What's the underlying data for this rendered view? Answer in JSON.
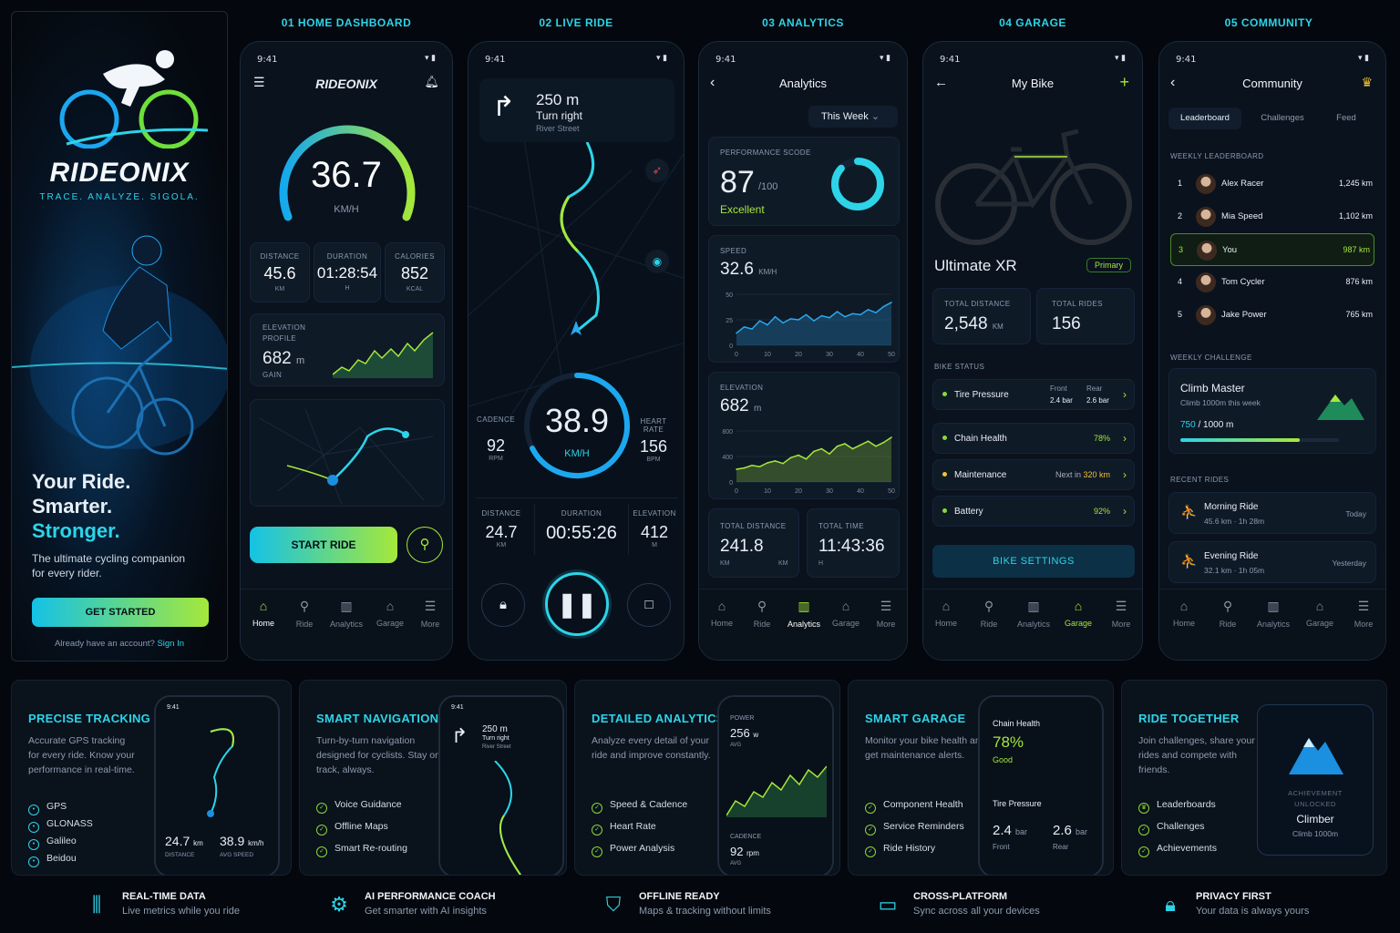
{
  "section_labels": [
    "01 HOME DASHBOARD",
    "02 LIVE RIDE",
    "03 ANALYTICS",
    "04 GARAGE",
    "05 COMMUNITY"
  ],
  "colors": {
    "accent_cyan": "#2dd4e8",
    "accent_green": "#a5e83a",
    "bg": "#04080e"
  },
  "splash": {
    "brand": "RIDEONIX",
    "tagline": "TRACE. ANALYZE. SIGOLA.",
    "headline1": "Your Ride.",
    "headline2": "Smarter.",
    "headline3": "Stronger.",
    "sub": "The ultimate cycling companion for every rider.",
    "cta": "GET STARTED",
    "signin_prefix": "Already have an account?",
    "signin_link": "Sign In"
  },
  "status_time": "9:41",
  "home": {
    "brand": "RIDEONIX",
    "speed": "36.7",
    "speed_unit": "KM/H",
    "stats": [
      {
        "label": "DISTANCE",
        "value": "45.6",
        "unit": "KM"
      },
      {
        "label": "DURATION",
        "value": "01:28:54",
        "unit": "H"
      },
      {
        "label": "CALORIES",
        "value": "852",
        "unit": "KCAL"
      }
    ],
    "elev_label1": "ELEVATION",
    "elev_label2": "PROFILE",
    "elev_value": "682",
    "elev_unit": "m",
    "elev_sub": "GAIN",
    "start": "START RIDE"
  },
  "nav": {
    "home": "Home",
    "ride": "Ride",
    "analytics": "Analytics",
    "garage": "Garage",
    "more": "More"
  },
  "live": {
    "dist": "250 m",
    "instr": "Turn right",
    "street": "River Street",
    "cad_label": "CADENCE",
    "cad_val": "92",
    "cad_unit": "RPM",
    "speed": "38.9",
    "speed_unit": "KM/H",
    "hr_label1": "HEART",
    "hr_label2": "RATE",
    "hr_val": "156",
    "hr_unit": "BPM",
    "stats": [
      {
        "label": "DISTANCE",
        "value": "24.7",
        "unit": "KM"
      },
      {
        "label": "DURATION",
        "value": "00:55:26",
        "unit": ""
      },
      {
        "label": "ELEVATION",
        "value": "412",
        "unit": "M"
      }
    ]
  },
  "analytics": {
    "title": "Analytics",
    "period": "This Week",
    "perf_label": "PERFORMANCE SCODE",
    "perf_val": "87",
    "perf_max": "/100",
    "perf_grade": "Excellent",
    "perf_fraction": 0.87,
    "speed_label": "SPEED",
    "speed_val": "32.6",
    "speed_unit": "KM/H",
    "elev_label": "ELEVATION",
    "elev_val": "682",
    "elev_unit": "m",
    "tot_dist_label": "TOTAL DISTANCE",
    "tot_dist": "241.8",
    "tot_dist_unit": "KM",
    "tot_dist_unit2": "KM",
    "tot_time_label": "TOTAL TIME",
    "tot_time": "11:43:36",
    "tot_time_unit": "H"
  },
  "chart_data": [
    {
      "type": "area",
      "title": "SPEED",
      "x": [
        0,
        2.5,
        5,
        7.5,
        10,
        12.5,
        15,
        17.5,
        20,
        22.5,
        25,
        27.5,
        30,
        32.5,
        35,
        37.5,
        40,
        42.5,
        45,
        47.5,
        50
      ],
      "y": [
        12,
        18,
        16,
        24,
        20,
        28,
        22,
        26,
        25,
        30,
        24,
        29,
        27,
        33,
        28,
        31,
        30,
        35,
        32,
        38,
        42
      ],
      "xlim": [
        0,
        50
      ],
      "ylim": [
        0,
        50
      ],
      "yticks": [
        0,
        25,
        50
      ],
      "xticks": [
        "0",
        "10",
        "20",
        "30",
        "40",
        "50"
      ]
    },
    {
      "type": "area",
      "title": "ELEVATION",
      "x": [
        0,
        2.5,
        5,
        7.5,
        10,
        12.5,
        15,
        17.5,
        20,
        22.5,
        25,
        27.5,
        30,
        32.5,
        35,
        37.5,
        40,
        42.5,
        45,
        47.5,
        50
      ],
      "y": [
        200,
        220,
        260,
        240,
        300,
        330,
        290,
        380,
        420,
        360,
        480,
        520,
        440,
        560,
        600,
        520,
        580,
        640,
        560,
        620,
        700
      ],
      "xlim": [
        0,
        50
      ],
      "ylim": [
        0,
        800
      ],
      "yticks": [
        0,
        400,
        800
      ],
      "xticks": [
        "0",
        "10",
        "20",
        "30",
        "40",
        "50"
      ]
    }
  ],
  "garage": {
    "title": "My Bike",
    "bike": "Ultimate XR",
    "badge": "Primary",
    "tot_dist_label": "TOTAL DISTANCE",
    "tot_dist": "2,548",
    "tot_dist_unit": "KM",
    "tot_rides_label": "TOTAL RIDES",
    "tot_rides": "156",
    "status_label": "BIKE STATUS",
    "items": [
      {
        "name": "Tire Pressure",
        "front_label": "Front",
        "front": "2.4 bar",
        "rear_label": "Rear",
        "rear": "2.6 bar"
      },
      {
        "name": "Chain Health",
        "value": "78%"
      },
      {
        "name": "Maintenance",
        "prefix": "Next in",
        "value": "320 km"
      },
      {
        "name": "Battery",
        "value": "92%"
      }
    ],
    "settings": "BIKE SETTINGS"
  },
  "community": {
    "title": "Community",
    "tabs": [
      "Leaderboard",
      "Challenges",
      "Feed"
    ],
    "lb_label": "WEEKLY LEADERBOARD",
    "leaders": [
      {
        "rank": "1",
        "name": "Alex Racer",
        "km": "1,245 km"
      },
      {
        "rank": "2",
        "name": "Mia Speed",
        "km": "1,102 km"
      },
      {
        "rank": "3",
        "name": "You",
        "km": "987 km"
      },
      {
        "rank": "4",
        "name": "Tom Cycler",
        "km": "876 km"
      },
      {
        "rank": "5",
        "name": "Jake Power",
        "km": "765 km"
      }
    ],
    "ch_label": "WEEKLY CHALLENGE",
    "ch_title": "Climb Master",
    "ch_sub": "Climb 1000m this week",
    "ch_prog": "750",
    "ch_total": "/ 1000 m",
    "ch_fraction": 0.75,
    "recent_label": "RECENT RIDES",
    "rides": [
      {
        "name": "Morning Ride",
        "meta": "45.6 km · 1h 28m",
        "when": "Today"
      },
      {
        "name": "Evening Ride",
        "meta": "32.1 km · 1h 05m",
        "when": "Yesterday"
      }
    ]
  },
  "promo": {
    "tracking": {
      "title": "PRECISE TRACKING",
      "desc": "Accurate GPS tracking for every ride. Know your performance in real-time.",
      "items": [
        "GPS",
        "GLONASS",
        "Galileo",
        "Beidou"
      ],
      "time": "9:41",
      "dist": "24.7",
      "dist_unit": "km",
      "dist_label": "DISTANCE",
      "speed": "38.9",
      "speed_unit": "km/h",
      "speed_label": "AVG SPEED"
    },
    "nav": {
      "title": "SMART NAVIGATION",
      "desc": "Turn-by-turn navigation designed for cyclists. Stay on track, always.",
      "items": [
        "Voice Guidance",
        "Offline Maps",
        "Smart Re-routing"
      ],
      "time": "9:41",
      "dist": "250 m",
      "instr": "Turn right",
      "street": "River Street"
    },
    "analytics": {
      "title": "DETAILED ANALYTICS",
      "desc": "Analyze every detail of your ride and improve constantly.",
      "items": [
        "Speed & Cadence",
        "Heart Rate",
        "Power Analysis"
      ],
      "power_label": "POWER",
      "power": "256",
      "power_unit": "w",
      "avg": "AVG",
      "cad_label": "CADENCE",
      "cad": "92",
      "cad_unit": "rpm"
    },
    "garage": {
      "title": "SMART GARAGE",
      "desc": "Monitor your bike health and get maintenance alerts.",
      "items": [
        "Component Health",
        "Service Reminders",
        "Ride History"
      ],
      "chain_label": "Chain Health",
      "chain": "78%",
      "chain_grade": "Good",
      "tire_label": "Tire Pressure",
      "front": "2.4",
      "rear": "2.6",
      "unit": "bar",
      "front_label": "Front",
      "rear_label": "Rear"
    },
    "together": {
      "title": "RIDE TOGETHER",
      "desc": "Join challenges, share your rides and compete with friends.",
      "items": [
        "Leaderboards",
        "Challenges",
        "Achievements"
      ],
      "ach1": "ACHIEVEMENT",
      "ach2": "UNLOCKED",
      "ach_name": "Climber",
      "ach_sub": "Climb 1000m"
    }
  },
  "features": [
    {
      "title": "REAL-TIME DATA",
      "desc": "Live metrics while you ride",
      "icon": "bars-icon"
    },
    {
      "title": "AI PERFORMANCE COACH",
      "desc": "Get smarter with AI insights",
      "icon": "chip-icon"
    },
    {
      "title": "OFFLINE READY",
      "desc": "Maps & tracking without limits",
      "icon": "map-icon"
    },
    {
      "title": "CROSS-PLATFORM",
      "desc": "Sync across all your devices",
      "icon": "monitor-icon"
    },
    {
      "title": "PRIVACY FIRST",
      "desc": "Your data is always yours",
      "icon": "lock-icon"
    }
  ]
}
